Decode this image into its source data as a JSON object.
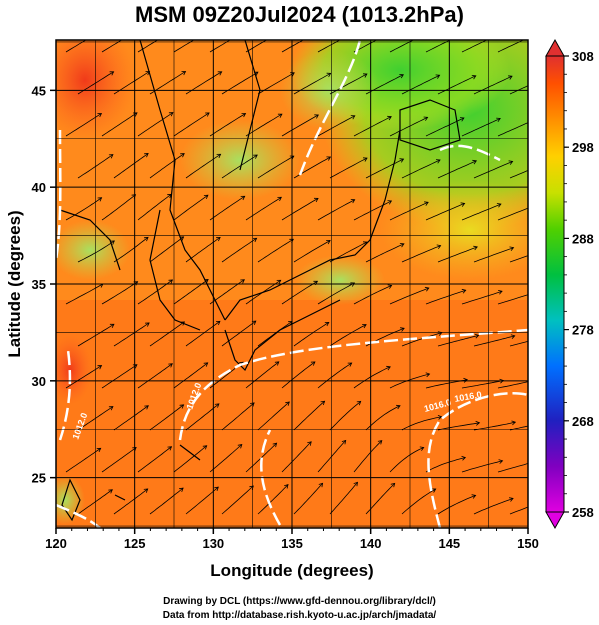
{
  "title": "MSM 09Z20Jul2024 (1013.2hPa)",
  "x_axis": {
    "label": "Longitude (degrees)",
    "ticks": [
      "120",
      "125",
      "130",
      "135",
      "140",
      "145",
      "150"
    ],
    "range": [
      120,
      150
    ]
  },
  "y_axis": {
    "label": "Latitude  (degrees)",
    "ticks": [
      "25",
      "30",
      "35",
      "40",
      "45"
    ],
    "range": [
      22.4,
      47.6
    ]
  },
  "colorbar": {
    "ticks": [
      "308",
      "298",
      "288",
      "278",
      "268",
      "258"
    ],
    "range": [
      258,
      308
    ],
    "colors": [
      "#d000d0",
      "#2020c0",
      "#0090ff",
      "#00c0c0",
      "#00c040",
      "#40d000",
      "#c0e000",
      "#ffe000",
      "#ffa000",
      "#ff6000",
      "#e02020"
    ]
  },
  "contours": {
    "labels": [
      "1012.0",
      "1012.0",
      "1016.0",
      "1016.0"
    ],
    "color": "#ffffff"
  },
  "credits": {
    "line1": "Drawing by DCL (https://www.gfd-dennou.org/library/dcl/)",
    "line2": "Data from http://database.rish.kyoto-u.ac.jp/arch/jmadata/"
  }
}
